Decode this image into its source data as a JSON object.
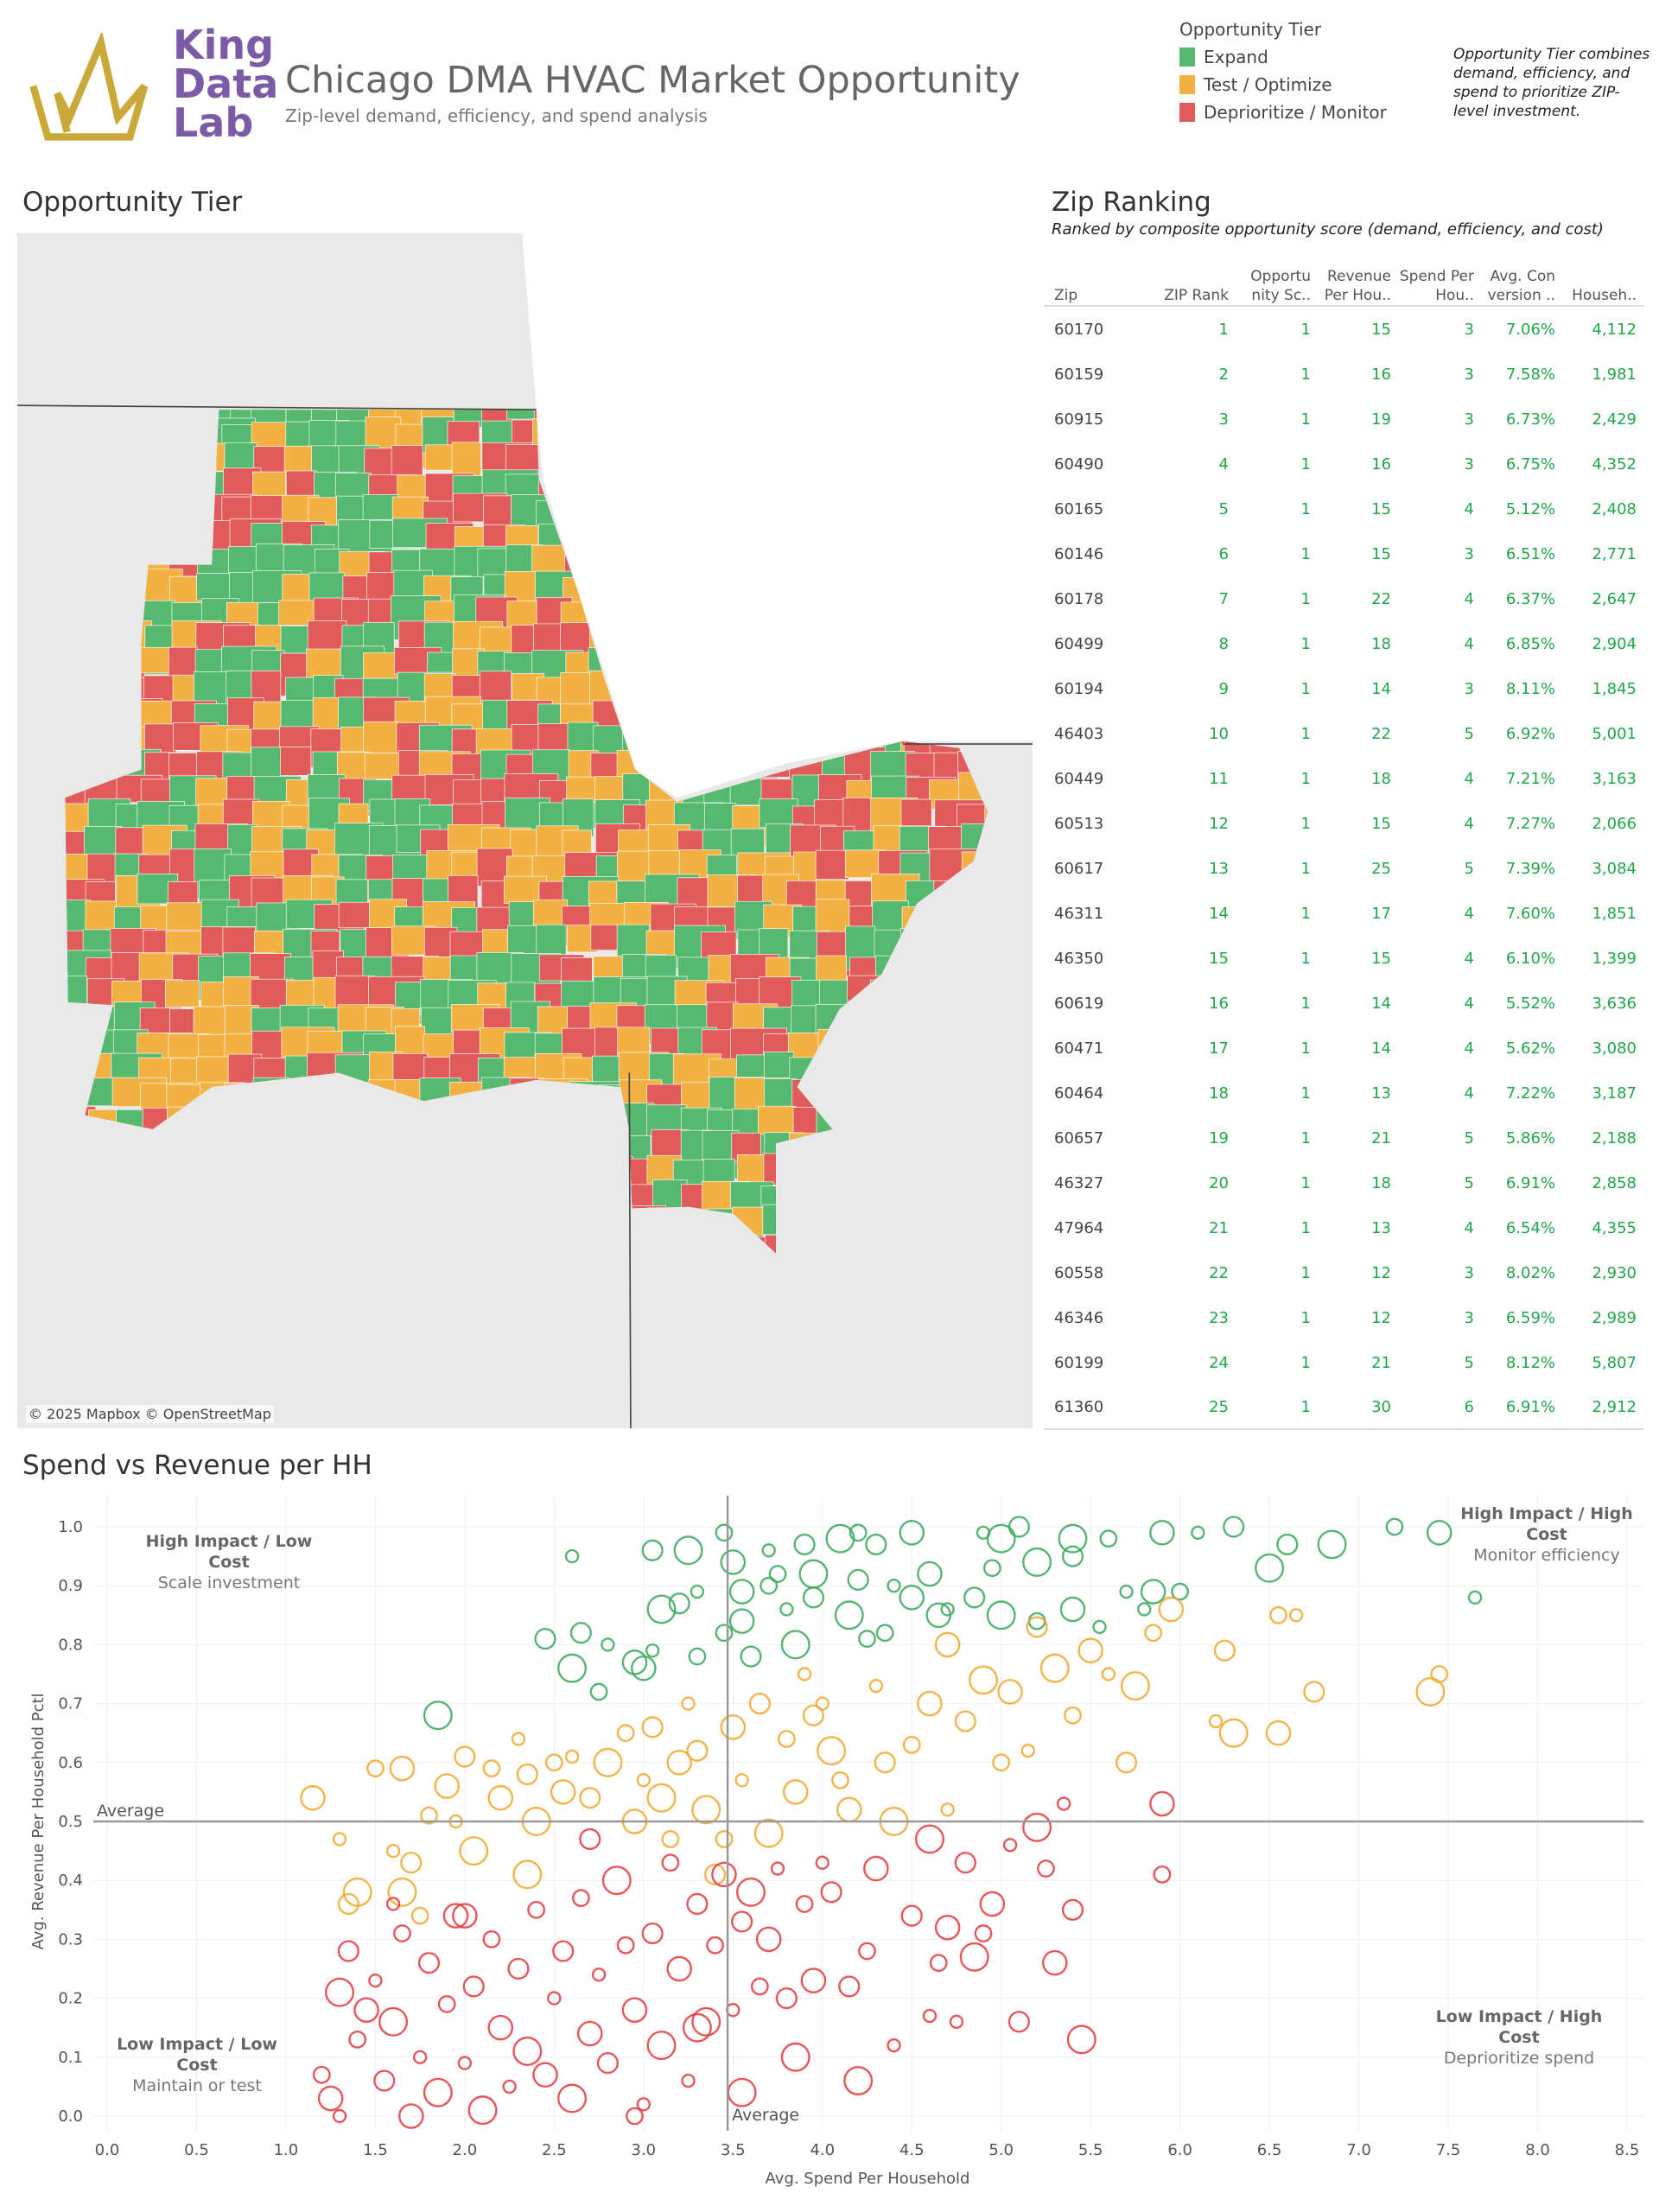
{
  "header": {
    "logo_text": [
      "King",
      "Data",
      "Lab"
    ],
    "title": "Chicago DMA HVAC Market Opportunity",
    "subtitle": "Zip-level demand, efficiency, and spend analysis"
  },
  "legend": {
    "title": "Opportunity Tier",
    "items": [
      {
        "label": "Expand",
        "color": "#57b86f"
      },
      {
        "label": "Test / Optimize",
        "color": "#f3b142"
      },
      {
        "label": "Deprioritize / Monitor",
        "color": "#e15b5b"
      }
    ]
  },
  "note": "Opportunity Tier combines demand, efficiency, and spend to prioritize ZIP-level investment.",
  "map": {
    "title": "Opportunity Tier",
    "credit": "© 2025 Mapbox © OpenStreetMap"
  },
  "ranking": {
    "title": "Zip Ranking",
    "subtitle": "Ranked by composite opportunity score (demand, efficiency, and cost)",
    "columns": [
      "Zip",
      "ZIP Rank",
      "Opportu nity Sc..",
      "Revenue Per Hou..",
      "Spend Per Hou..",
      "Avg. Con version ..",
      "Househ.."
    ],
    "rows": [
      [
        "60170",
        "1",
        "1",
        "15",
        "3",
        "7.06%",
        "4,112"
      ],
      [
        "60159",
        "2",
        "1",
        "16",
        "3",
        "7.58%",
        "1,981"
      ],
      [
        "60915",
        "3",
        "1",
        "19",
        "3",
        "6.73%",
        "2,429"
      ],
      [
        "60490",
        "4",
        "1",
        "16",
        "3",
        "6.75%",
        "4,352"
      ],
      [
        "60165",
        "5",
        "1",
        "15",
        "4",
        "5.12%",
        "2,408"
      ],
      [
        "60146",
        "6",
        "1",
        "15",
        "3",
        "6.51%",
        "2,771"
      ],
      [
        "60178",
        "7",
        "1",
        "22",
        "4",
        "6.37%",
        "2,647"
      ],
      [
        "60499",
        "8",
        "1",
        "18",
        "4",
        "6.85%",
        "2,904"
      ],
      [
        "60194",
        "9",
        "1",
        "14",
        "3",
        "8.11%",
        "1,845"
      ],
      [
        "46403",
        "10",
        "1",
        "22",
        "5",
        "6.92%",
        "5,001"
      ],
      [
        "60449",
        "11",
        "1",
        "18",
        "4",
        "7.21%",
        "3,163"
      ],
      [
        "60513",
        "12",
        "1",
        "15",
        "4",
        "7.27%",
        "2,066"
      ],
      [
        "60617",
        "13",
        "1",
        "25",
        "5",
        "7.39%",
        "3,084"
      ],
      [
        "46311",
        "14",
        "1",
        "17",
        "4",
        "7.60%",
        "1,851"
      ],
      [
        "46350",
        "15",
        "1",
        "15",
        "4",
        "6.10%",
        "1,399"
      ],
      [
        "60619",
        "16",
        "1",
        "14",
        "4",
        "5.52%",
        "3,636"
      ],
      [
        "60471",
        "17",
        "1",
        "14",
        "4",
        "5.62%",
        "3,080"
      ],
      [
        "60464",
        "18",
        "1",
        "13",
        "4",
        "7.22%",
        "3,187"
      ],
      [
        "60657",
        "19",
        "1",
        "21",
        "5",
        "5.86%",
        "2,188"
      ],
      [
        "46327",
        "20",
        "1",
        "18",
        "5",
        "6.91%",
        "2,858"
      ],
      [
        "47964",
        "21",
        "1",
        "13",
        "4",
        "6.54%",
        "4,355"
      ],
      [
        "60558",
        "22",
        "1",
        "12",
        "3",
        "8.02%",
        "2,930"
      ],
      [
        "46346",
        "23",
        "1",
        "12",
        "3",
        "6.59%",
        "2,989"
      ],
      [
        "60199",
        "24",
        "1",
        "21",
        "5",
        "8.12%",
        "5,807"
      ],
      [
        "61360",
        "25",
        "1",
        "30",
        "6",
        "6.91%",
        "2,912"
      ]
    ]
  },
  "chart_data": {
    "type": "scatter",
    "title": "Spend vs Revenue per HH",
    "xlabel": "Avg. Spend Per Household",
    "ylabel": "Avg. Revenue Per Household Pctl",
    "xlim": [
      0,
      8.5
    ],
    "ylim": [
      0,
      1.0
    ],
    "xticks": [
      "0.0",
      "0.5",
      "1.0",
      "1.5",
      "2.0",
      "2.5",
      "3.0",
      "3.5",
      "4.0",
      "4.5",
      "5.0",
      "5.5",
      "6.0",
      "6.5",
      "7.0",
      "7.5",
      "8.0",
      "8.5"
    ],
    "yticks": [
      "0.0",
      "0.1",
      "0.2",
      "0.3",
      "0.4",
      "0.5",
      "0.6",
      "0.7",
      "0.8",
      "0.9",
      "1.0"
    ],
    "grid": true,
    "reference_lines": {
      "x": {
        "value": 3.47,
        "label": "Average"
      },
      "y": {
        "value": 0.5,
        "label": "Average"
      }
    },
    "quadrants": [
      {
        "title": "High Impact / Low Cost",
        "sub": "Scale investment"
      },
      {
        "title": "High Impact / High Cost",
        "sub": "Monitor efficiency"
      },
      {
        "title": "Low Impact / Low Cost",
        "sub": "Maintain or test"
      },
      {
        "title": "Low Impact / High Cost",
        "sub": "Deprioritize spend"
      }
    ],
    "series": [
      {
        "name": "Expand",
        "color": "#3aa85a",
        "points": [
          [
            2.6,
            0.95
          ],
          [
            3.05,
            0.96
          ],
          [
            3.25,
            0.96
          ],
          [
            3.45,
            0.99
          ],
          [
            3.5,
            0.94
          ],
          [
            3.7,
            0.96
          ],
          [
            3.9,
            0.97
          ],
          [
            4.1,
            0.98
          ],
          [
            4.2,
            0.99
          ],
          [
            4.5,
            0.99
          ],
          [
            4.9,
            0.99
          ],
          [
            5.1,
            1.0
          ],
          [
            5.4,
            0.98
          ],
          [
            5.6,
            0.98
          ],
          [
            5.9,
            0.99
          ],
          [
            6.1,
            0.99
          ],
          [
            6.3,
            1.0
          ],
          [
            6.85,
            0.97
          ],
          [
            7.2,
            1.0
          ],
          [
            7.45,
            0.99
          ],
          [
            7.65,
            0.88
          ],
          [
            6.6,
            0.97
          ],
          [
            6.5,
            0.93
          ],
          [
            6.0,
            0.89
          ],
          [
            5.85,
            0.89
          ],
          [
            5.7,
            0.89
          ],
          [
            5.4,
            0.95
          ],
          [
            5.2,
            0.94
          ],
          [
            4.95,
            0.93
          ],
          [
            4.6,
            0.92
          ],
          [
            4.4,
            0.9
          ],
          [
            4.2,
            0.91
          ],
          [
            3.95,
            0.92
          ],
          [
            3.75,
            0.92
          ],
          [
            3.55,
            0.89
          ],
          [
            3.3,
            0.89
          ],
          [
            3.2,
            0.87
          ],
          [
            3.1,
            0.86
          ],
          [
            3.45,
            0.82
          ],
          [
            3.55,
            0.84
          ],
          [
            3.8,
            0.86
          ],
          [
            3.95,
            0.88
          ],
          [
            4.15,
            0.85
          ],
          [
            4.35,
            0.82
          ],
          [
            4.5,
            0.88
          ],
          [
            4.7,
            0.86
          ],
          [
            4.85,
            0.88
          ],
          [
            5.0,
            0.85
          ],
          [
            5.2,
            0.84
          ],
          [
            5.4,
            0.86
          ],
          [
            5.55,
            0.83
          ],
          [
            3.6,
            0.78
          ],
          [
            3.85,
            0.8
          ],
          [
            3.3,
            0.78
          ],
          [
            3.0,
            0.76
          ],
          [
            2.8,
            0.8
          ],
          [
            2.65,
            0.82
          ],
          [
            2.6,
            0.76
          ],
          [
            2.75,
            0.72
          ],
          [
            2.95,
            0.77
          ],
          [
            3.05,
            0.79
          ],
          [
            2.45,
            0.81
          ],
          [
            1.85,
            0.68
          ],
          [
            4.25,
            0.81
          ],
          [
            4.65,
            0.85
          ],
          [
            5.8,
            0.86
          ],
          [
            4.3,
            0.97
          ],
          [
            5.0,
            0.98
          ],
          [
            3.7,
            0.9
          ]
        ]
      },
      {
        "name": "Test / Optimize",
        "color": "#f2a72e",
        "points": [
          [
            1.15,
            0.54
          ],
          [
            1.3,
            0.47
          ],
          [
            1.35,
            0.36
          ],
          [
            1.4,
            0.38
          ],
          [
            1.5,
            0.59
          ],
          [
            1.65,
            0.59
          ],
          [
            1.6,
            0.45
          ],
          [
            1.7,
            0.43
          ],
          [
            1.65,
            0.38
          ],
          [
            1.8,
            0.51
          ],
          [
            1.9,
            0.56
          ],
          [
            1.95,
            0.5
          ],
          [
            2.0,
            0.61
          ],
          [
            2.05,
            0.45
          ],
          [
            2.15,
            0.59
          ],
          [
            2.2,
            0.54
          ],
          [
            2.3,
            0.64
          ],
          [
            2.35,
            0.58
          ],
          [
            2.4,
            0.5
          ],
          [
            2.5,
            0.6
          ],
          [
            2.55,
            0.55
          ],
          [
            2.6,
            0.61
          ],
          [
            2.7,
            0.54
          ],
          [
            2.8,
            0.6
          ],
          [
            2.9,
            0.65
          ],
          [
            2.95,
            0.5
          ],
          [
            3.0,
            0.57
          ],
          [
            3.05,
            0.66
          ],
          [
            3.1,
            0.54
          ],
          [
            3.15,
            0.47
          ],
          [
            3.2,
            0.6
          ],
          [
            3.25,
            0.7
          ],
          [
            3.3,
            0.62
          ],
          [
            3.35,
            0.52
          ],
          [
            3.45,
            0.47
          ],
          [
            3.5,
            0.66
          ],
          [
            3.55,
            0.57
          ],
          [
            3.65,
            0.7
          ],
          [
            3.7,
            0.48
          ],
          [
            3.8,
            0.64
          ],
          [
            3.85,
            0.55
          ],
          [
            3.9,
            0.75
          ],
          [
            3.95,
            0.68
          ],
          [
            4.05,
            0.62
          ],
          [
            4.1,
            0.57
          ],
          [
            4.15,
            0.52
          ],
          [
            4.3,
            0.73
          ],
          [
            4.35,
            0.6
          ],
          [
            4.4,
            0.5
          ],
          [
            4.5,
            0.63
          ],
          [
            4.6,
            0.7
          ],
          [
            4.7,
            0.52
          ],
          [
            4.8,
            0.67
          ],
          [
            4.9,
            0.74
          ],
          [
            5.0,
            0.6
          ],
          [
            5.05,
            0.72
          ],
          [
            5.15,
            0.62
          ],
          [
            5.2,
            0.83
          ],
          [
            5.3,
            0.76
          ],
          [
            5.4,
            0.68
          ],
          [
            5.5,
            0.79
          ],
          [
            5.6,
            0.75
          ],
          [
            5.7,
            0.6
          ],
          [
            5.75,
            0.73
          ],
          [
            5.85,
            0.82
          ],
          [
            5.95,
            0.86
          ],
          [
            6.2,
            0.67
          ],
          [
            6.25,
            0.79
          ],
          [
            6.3,
            0.65
          ],
          [
            6.55,
            0.85
          ],
          [
            6.55,
            0.65
          ],
          [
            6.65,
            0.85
          ],
          [
            6.75,
            0.72
          ],
          [
            7.4,
            0.72
          ],
          [
            7.45,
            0.75
          ],
          [
            4.7,
            0.8
          ],
          [
            4.0,
            0.7
          ],
          [
            3.4,
            0.41
          ],
          [
            2.35,
            0.41
          ],
          [
            1.75,
            0.34
          ]
        ]
      },
      {
        "name": "Deprioritize / Monitor",
        "color": "#e0393e",
        "points": [
          [
            1.2,
            0.07
          ],
          [
            1.25,
            0.03
          ],
          [
            1.3,
            0.0
          ],
          [
            1.35,
            0.28
          ],
          [
            1.3,
            0.21
          ],
          [
            1.4,
            0.13
          ],
          [
            1.45,
            0.18
          ],
          [
            1.5,
            0.23
          ],
          [
            1.55,
            0.06
          ],
          [
            1.6,
            0.16
          ],
          [
            1.65,
            0.31
          ],
          [
            1.7,
            0.0
          ],
          [
            1.75,
            0.1
          ],
          [
            1.8,
            0.26
          ],
          [
            1.85,
            0.04
          ],
          [
            1.9,
            0.19
          ],
          [
            1.95,
            0.34
          ],
          [
            2.0,
            0.09
          ],
          [
            2.05,
            0.22
          ],
          [
            2.1,
            0.01
          ],
          [
            2.15,
            0.3
          ],
          [
            2.2,
            0.15
          ],
          [
            2.25,
            0.05
          ],
          [
            2.3,
            0.25
          ],
          [
            2.35,
            0.11
          ],
          [
            2.4,
            0.35
          ],
          [
            2.45,
            0.07
          ],
          [
            2.5,
            0.2
          ],
          [
            2.55,
            0.28
          ],
          [
            2.6,
            0.03
          ],
          [
            2.65,
            0.37
          ],
          [
            2.7,
            0.14
          ],
          [
            2.75,
            0.24
          ],
          [
            2.8,
            0.09
          ],
          [
            2.85,
            0.4
          ],
          [
            2.9,
            0.29
          ],
          [
            2.95,
            0.18
          ],
          [
            3.0,
            0.02
          ],
          [
            3.05,
            0.31
          ],
          [
            3.1,
            0.12
          ],
          [
            3.15,
            0.43
          ],
          [
            3.2,
            0.25
          ],
          [
            3.25,
            0.06
          ],
          [
            3.3,
            0.36
          ],
          [
            3.35,
            0.16
          ],
          [
            3.4,
            0.29
          ],
          [
            3.45,
            0.41
          ],
          [
            3.5,
            0.18
          ],
          [
            3.55,
            0.33
          ],
          [
            3.6,
            0.38
          ],
          [
            3.65,
            0.22
          ],
          [
            3.7,
            0.3
          ],
          [
            3.75,
            0.42
          ],
          [
            3.8,
            0.2
          ],
          [
            3.85,
            0.1
          ],
          [
            3.9,
            0.36
          ],
          [
            3.95,
            0.23
          ],
          [
            4.0,
            0.43
          ],
          [
            4.05,
            0.38
          ],
          [
            4.2,
            0.06
          ],
          [
            4.25,
            0.28
          ],
          [
            4.3,
            0.42
          ],
          [
            4.4,
            0.12
          ],
          [
            4.5,
            0.34
          ],
          [
            4.6,
            0.47
          ],
          [
            4.65,
            0.26
          ],
          [
            4.7,
            0.32
          ],
          [
            4.75,
            0.16
          ],
          [
            4.8,
            0.43
          ],
          [
            4.85,
            0.27
          ],
          [
            4.9,
            0.31
          ],
          [
            4.95,
            0.36
          ],
          [
            5.05,
            0.46
          ],
          [
            5.1,
            0.16
          ],
          [
            5.2,
            0.49
          ],
          [
            5.25,
            0.42
          ],
          [
            5.3,
            0.26
          ],
          [
            5.35,
            0.53
          ],
          [
            5.4,
            0.35
          ],
          [
            5.45,
            0.13
          ],
          [
            5.9,
            0.41
          ],
          [
            5.9,
            0.53
          ],
          [
            4.6,
            0.17
          ],
          [
            4.15,
            0.22
          ],
          [
            3.55,
            0.04
          ],
          [
            2.95,
            0.0
          ],
          [
            2.0,
            0.34
          ],
          [
            1.6,
            0.36
          ],
          [
            2.7,
            0.47
          ],
          [
            3.3,
            0.15
          ]
        ]
      }
    ]
  }
}
